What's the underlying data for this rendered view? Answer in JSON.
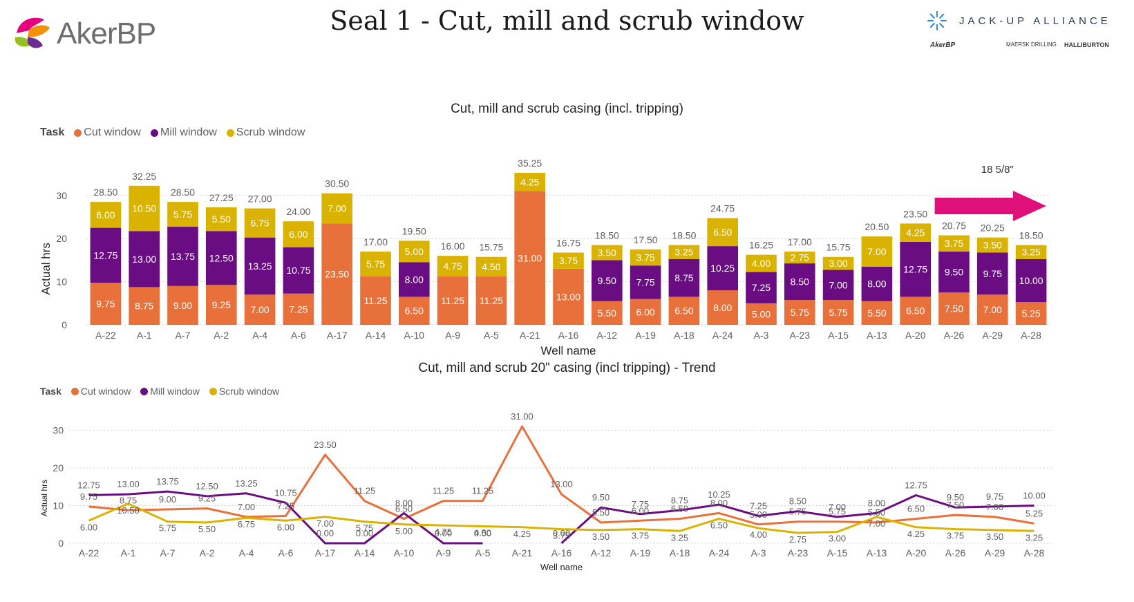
{
  "header": {
    "title": "Seal 1 - Cut, mill and scrub window",
    "logo_text": "AkerBP",
    "alliance_name": "JACK-UP ALLIANCE",
    "partners": [
      "AkerBP",
      "MAERSK DRILLING",
      "HALLIBURTON"
    ]
  },
  "colors": {
    "cut": "#e8703a",
    "mill": "#6a0d83",
    "scrub": "#d9b300",
    "arrow": "#e0107a"
  },
  "chart_data": [
    {
      "type": "bar",
      "stacked": true,
      "title": "Cut, mill and scrub casing (incl. tripping)",
      "legend_title": "Task",
      "legend_position": "top-left",
      "xlabel": "Well name",
      "ylabel": "Actual hrs",
      "ylim": [
        0,
        36
      ],
      "yticks": [
        0,
        10,
        20,
        30
      ],
      "grid": true,
      "categories": [
        "A-22",
        "A-1",
        "A-7",
        "A-2",
        "A-4",
        "A-6",
        "A-17",
        "A-14",
        "A-10",
        "A-9",
        "A-5",
        "A-21",
        "A-16",
        "A-12",
        "A-19",
        "A-18",
        "A-24",
        "A-3",
        "A-23",
        "A-15",
        "A-13",
        "A-20",
        "A-26",
        "A-29",
        "A-28"
      ],
      "series": [
        {
          "name": "Cut window",
          "values": [
            9.75,
            8.75,
            9.0,
            9.25,
            7.0,
            7.25,
            23.5,
            11.25,
            6.5,
            11.25,
            11.25,
            31.0,
            13.0,
            5.5,
            6.0,
            6.5,
            8.0,
            5.0,
            5.75,
            5.75,
            5.5,
            6.5,
            7.5,
            7.0,
            5.25
          ]
        },
        {
          "name": "Mill window",
          "values": [
            12.75,
            13.0,
            13.75,
            12.5,
            13.25,
            10.75,
            null,
            null,
            8.0,
            null,
            null,
            null,
            null,
            9.5,
            7.75,
            8.75,
            10.25,
            7.25,
            8.5,
            7.0,
            8.0,
            12.75,
            9.5,
            9.75,
            10.0
          ]
        },
        {
          "name": "Scrub window",
          "values": [
            6.0,
            10.5,
            5.75,
            5.5,
            6.75,
            6.0,
            7.0,
            5.75,
            5.0,
            4.75,
            4.5,
            4.25,
            3.75,
            3.5,
            3.75,
            3.25,
            6.5,
            4.0,
            2.75,
            3.0,
            7.0,
            4.25,
            3.75,
            3.5,
            3.25
          ]
        }
      ],
      "totals": [
        "28.50",
        "32.25",
        "28.50",
        "27.25",
        "27.00",
        "24.00",
        "30.50",
        "17.00",
        "19.50",
        "16.00",
        "15.75",
        "35.25",
        "16.75",
        "18.50",
        "17.50",
        "18.50",
        "24.75",
        "16.25",
        "17.00",
        "15.75",
        "20.50",
        "23.50",
        "20.75",
        "20.25",
        "18.50"
      ],
      "annotation": {
        "text": "18 5/8\"",
        "from_category": "A-26",
        "to_category": "A-28"
      }
    },
    {
      "type": "line",
      "title": "Cut, mill and scrub 20\" casing (incl tripping) - Trend",
      "legend_title": "Task",
      "legend_position": "top-left",
      "xlabel": "Well name",
      "ylabel": "Actual hrs",
      "ylim": [
        0,
        32
      ],
      "yticks": [
        0,
        10,
        20,
        30
      ],
      "grid": true,
      "categories": [
        "A-22",
        "A-1",
        "A-7",
        "A-2",
        "A-4",
        "A-6",
        "A-17",
        "A-14",
        "A-10",
        "A-9",
        "A-5",
        "A-21",
        "A-16",
        "A-12",
        "A-19",
        "A-18",
        "A-24",
        "A-3",
        "A-23",
        "A-15",
        "A-13",
        "A-20",
        "A-26",
        "A-29",
        "A-28"
      ],
      "series": [
        {
          "name": "Cut window",
          "values": [
            9.75,
            8.75,
            9.0,
            9.25,
            7.0,
            7.25,
            23.5,
            11.25,
            6.5,
            11.25,
            11.25,
            31.0,
            13.0,
            5.5,
            6.0,
            6.5,
            8.0,
            5.0,
            5.75,
            5.75,
            5.5,
            6.5,
            7.5,
            7.0,
            5.25
          ]
        },
        {
          "name": "Mill window",
          "values": [
            12.75,
            13.0,
            13.75,
            12.5,
            13.25,
            10.75,
            0.0,
            0.0,
            8.0,
            0.0,
            0.0,
            null,
            0.0,
            9.5,
            7.75,
            8.75,
            10.25,
            7.25,
            8.5,
            7.0,
            8.0,
            12.75,
            9.5,
            9.75,
            10.0
          ]
        },
        {
          "name": "Scrub window",
          "values": [
            6.0,
            10.5,
            5.75,
            5.5,
            6.75,
            6.0,
            7.0,
            5.75,
            5.0,
            4.75,
            4.5,
            4.25,
            3.75,
            3.5,
            3.75,
            3.25,
            6.5,
            4.0,
            2.75,
            3.0,
            7.0,
            4.25,
            3.75,
            3.5,
            3.25
          ]
        }
      ]
    }
  ]
}
